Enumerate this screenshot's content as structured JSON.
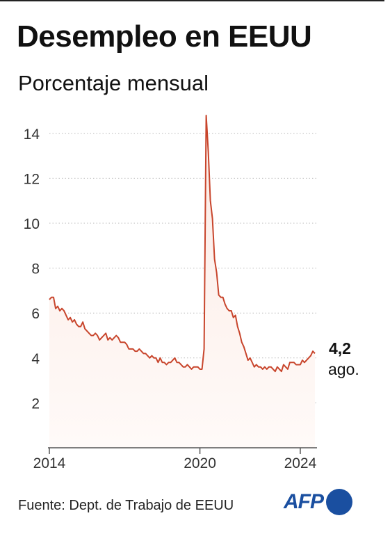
{
  "header": {
    "title": "Desempleo en EEUU",
    "subtitle": "Porcentaje mensual"
  },
  "callout": {
    "value": "4,2",
    "label": "ago."
  },
  "footer": {
    "source": "Fuente: Dept. de Trabajo de EEUU",
    "logo_text": "AFP"
  },
  "colors": {
    "line": "#c8452c",
    "fill": "#fbeae4",
    "grid": "#b9b9b9",
    "axis": "#555555",
    "brand": "#1a4fa0"
  },
  "chart_data": {
    "type": "area",
    "title": "Desempleo en EEUU",
    "subtitle": "Porcentaje mensual",
    "xlabel": "",
    "ylabel": "",
    "xlim": [
      "2014-01",
      "2024-08"
    ],
    "ylim": [
      0,
      15
    ],
    "grid": true,
    "y_ticks": [
      2,
      4,
      6,
      8,
      10,
      12,
      14
    ],
    "y_tick_labels": [
      "2",
      "4",
      "6",
      "8",
      "10",
      "12",
      "14"
    ],
    "x_ticks": [
      "2014-01",
      "2020-01",
      "2024-01"
    ],
    "x_tick_labels": [
      "2014",
      "2020",
      "2024"
    ],
    "series": [
      {
        "x": [
          "2014-01",
          "2014-02",
          "2014-03",
          "2014-04",
          "2014-05",
          "2014-06",
          "2014-07",
          "2014-08",
          "2014-09",
          "2014-10",
          "2014-11",
          "2014-12",
          "2015-01",
          "2015-02",
          "2015-03",
          "2015-04",
          "2015-05",
          "2015-06",
          "2015-07",
          "2015-08",
          "2015-09",
          "2015-10",
          "2015-11",
          "2015-12",
          "2016-01",
          "2016-02",
          "2016-03",
          "2016-04",
          "2016-05",
          "2016-06",
          "2016-07",
          "2016-08",
          "2016-09",
          "2016-10",
          "2016-11",
          "2016-12",
          "2017-01",
          "2017-02",
          "2017-03",
          "2017-04",
          "2017-05",
          "2017-06",
          "2017-07",
          "2017-08",
          "2017-09",
          "2017-10",
          "2017-11",
          "2017-12",
          "2018-01",
          "2018-02",
          "2018-03",
          "2018-04",
          "2018-05",
          "2018-06",
          "2018-07",
          "2018-08",
          "2018-09",
          "2018-10",
          "2018-11",
          "2018-12",
          "2019-01",
          "2019-02",
          "2019-03",
          "2019-04",
          "2019-05",
          "2019-06",
          "2019-07",
          "2019-08",
          "2019-09",
          "2019-10",
          "2019-11",
          "2019-12",
          "2020-01",
          "2020-02",
          "2020-03",
          "2020-04",
          "2020-05",
          "2020-06",
          "2020-07",
          "2020-08",
          "2020-09",
          "2020-10",
          "2020-11",
          "2020-12",
          "2021-01",
          "2021-02",
          "2021-03",
          "2021-04",
          "2021-05",
          "2021-06",
          "2021-07",
          "2021-08",
          "2021-09",
          "2021-10",
          "2021-11",
          "2021-12",
          "2022-01",
          "2022-02",
          "2022-03",
          "2022-04",
          "2022-05",
          "2022-06",
          "2022-07",
          "2022-08",
          "2022-09",
          "2022-10",
          "2022-11",
          "2022-12",
          "2023-01",
          "2023-02",
          "2023-03",
          "2023-04",
          "2023-05",
          "2023-06",
          "2023-07",
          "2023-08",
          "2023-09",
          "2023-10",
          "2023-11",
          "2023-12",
          "2024-01",
          "2024-02",
          "2024-03",
          "2024-04",
          "2024-05",
          "2024-06",
          "2024-07",
          "2024-08"
        ],
        "values": [
          6.6,
          6.7,
          6.7,
          6.2,
          6.3,
          6.1,
          6.2,
          6.1,
          5.9,
          5.7,
          5.8,
          5.6,
          5.7,
          5.5,
          5.4,
          5.4,
          5.6,
          5.3,
          5.2,
          5.1,
          5.0,
          5.0,
          5.1,
          5.0,
          4.8,
          4.9,
          5.0,
          5.1,
          4.8,
          4.9,
          4.8,
          4.9,
          5.0,
          4.9,
          4.7,
          4.7,
          4.7,
          4.6,
          4.4,
          4.4,
          4.4,
          4.3,
          4.3,
          4.4,
          4.3,
          4.2,
          4.2,
          4.1,
          4.0,
          4.1,
          4.0,
          4.0,
          3.8,
          4.0,
          3.8,
          3.8,
          3.7,
          3.8,
          3.8,
          3.9,
          4.0,
          3.8,
          3.8,
          3.7,
          3.6,
          3.6,
          3.7,
          3.6,
          3.5,
          3.6,
          3.6,
          3.6,
          3.5,
          3.5,
          4.4,
          14.8,
          13.2,
          11.0,
          10.2,
          8.4,
          7.8,
          6.8,
          6.7,
          6.7,
          6.4,
          6.2,
          6.1,
          6.1,
          5.8,
          5.9,
          5.4,
          5.1,
          4.7,
          4.5,
          4.2,
          3.9,
          4.0,
          3.8,
          3.6,
          3.7,
          3.6,
          3.6,
          3.5,
          3.6,
          3.5,
          3.6,
          3.6,
          3.5,
          3.4,
          3.6,
          3.5,
          3.4,
          3.7,
          3.6,
          3.5,
          3.8,
          3.8,
          3.8,
          3.7,
          3.7,
          3.7,
          3.9,
          3.8,
          3.9,
          4.0,
          4.1,
          4.3,
          4.2
        ]
      }
    ]
  }
}
